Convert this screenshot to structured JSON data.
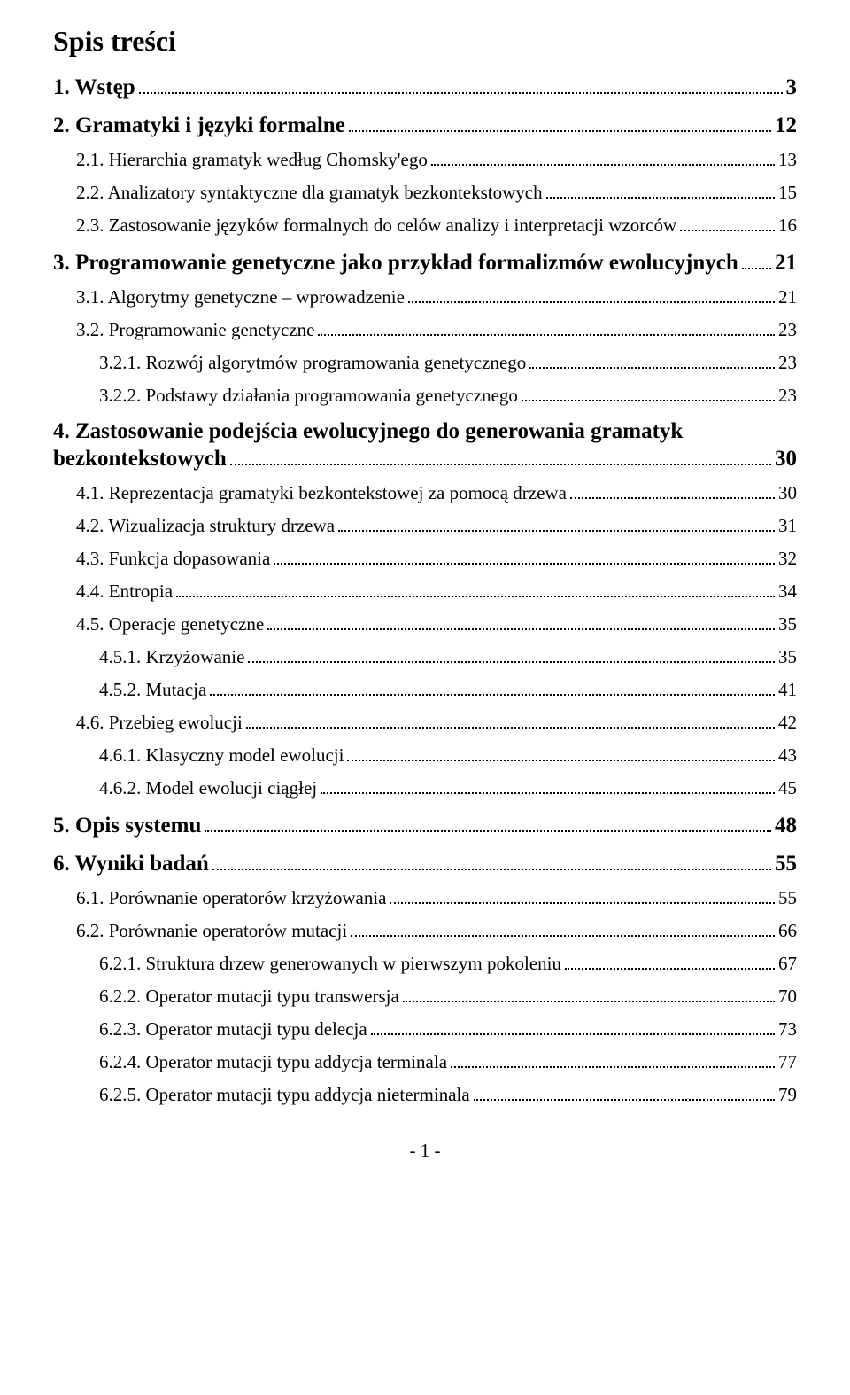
{
  "title": "Spis treści",
  "footer": "- 1 -",
  "entries": [
    {
      "level": 1,
      "label": "1. Wstęp",
      "page": "3"
    },
    {
      "level": 1,
      "label": "2. Gramatyki i języki formalne",
      "page": "12"
    },
    {
      "level": 2,
      "label": "2.1. Hierarchia gramatyk według Chomsky'ego",
      "page": "13"
    },
    {
      "level": 2,
      "label": "2.2. Analizatory syntaktyczne dla gramatyk bezkontekstowych",
      "page": "15"
    },
    {
      "level": 2,
      "label": "2.3. Zastosowanie języków formalnych do celów analizy i interpretacji wzorców",
      "page": "16"
    },
    {
      "level": 1,
      "label": "3. Programowanie genetyczne jako przykład formalizmów ewolucyjnych",
      "page": "21"
    },
    {
      "level": 2,
      "label": "3.1. Algorytmy genetyczne – wprowadzenie",
      "page": "21"
    },
    {
      "level": 2,
      "label": "3.2. Programowanie genetyczne",
      "page": "23"
    },
    {
      "level": 3,
      "label": "3.2.1. Rozwój algorytmów programowania genetycznego",
      "page": "23"
    },
    {
      "level": 3,
      "label": "3.2.2. Podstawy działania programowania genetycznego",
      "page": "23"
    },
    {
      "level": 1,
      "multi": true,
      "label_top": "4. Zastosowanie podejścia ewolucyjnego do generowania gramatyk",
      "label_bottom": "bezkontekstowych",
      "page": "30"
    },
    {
      "level": 2,
      "label": "4.1. Reprezentacja gramatyki bezkontekstowej za pomocą drzewa",
      "page": "30"
    },
    {
      "level": 2,
      "label": "4.2. Wizualizacja struktury drzewa",
      "page": "31"
    },
    {
      "level": 2,
      "label": "4.3. Funkcja dopasowania",
      "page": "32"
    },
    {
      "level": 2,
      "label": "4.4. Entropia",
      "page": "34"
    },
    {
      "level": 2,
      "label": "4.5. Operacje genetyczne",
      "page": "35"
    },
    {
      "level": 3,
      "label": "4.5.1. Krzyżowanie",
      "page": "35"
    },
    {
      "level": 3,
      "label": "4.5.2. Mutacja",
      "page": "41"
    },
    {
      "level": 2,
      "label": "4.6. Przebieg ewolucji",
      "page": "42"
    },
    {
      "level": 3,
      "label": "4.6.1. Klasyczny model ewolucji",
      "page": "43"
    },
    {
      "level": 3,
      "label": "4.6.2. Model ewolucji ciągłej",
      "page": "45"
    },
    {
      "level": 1,
      "label": "5. Opis systemu",
      "page": "48"
    },
    {
      "level": 1,
      "label": "6. Wyniki badań",
      "page": "55"
    },
    {
      "level": 2,
      "label": "6.1. Porównanie operatorów krzyżowania",
      "page": "55"
    },
    {
      "level": 2,
      "label": "6.2. Porównanie operatorów mutacji",
      "page": "66"
    },
    {
      "level": 3,
      "label": "6.2.1. Struktura drzew generowanych w pierwszym pokoleniu",
      "page": "67"
    },
    {
      "level": 3,
      "label": "6.2.2. Operator mutacji typu transwersja",
      "page": "70"
    },
    {
      "level": 3,
      "label": "6.2.3. Operator mutacji typu delecja",
      "page": "73"
    },
    {
      "level": 3,
      "label": "6.2.4. Operator mutacji typu addycja terminala",
      "page": "77"
    },
    {
      "level": 3,
      "label": "6.2.5. Operator mutacji typu addycja nieterminala",
      "page": "79"
    }
  ]
}
